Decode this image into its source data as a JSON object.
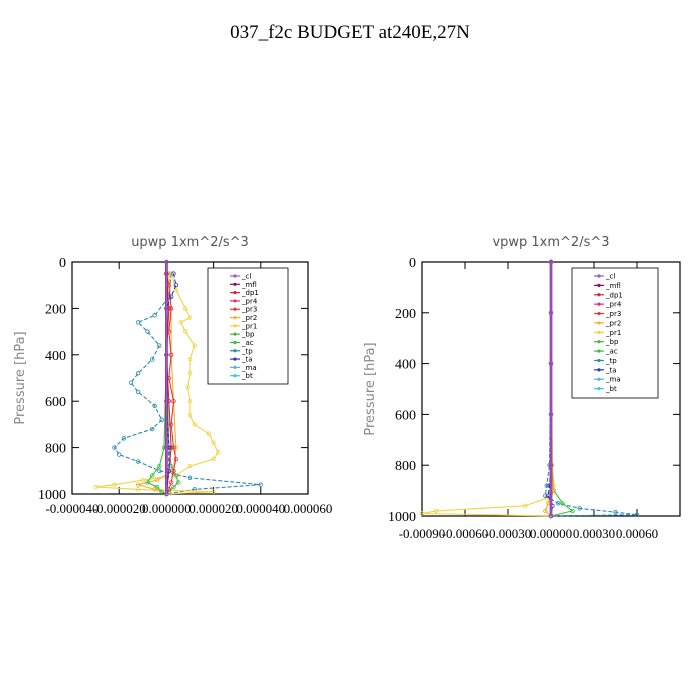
{
  "page": {
    "title": "037_f2c  BUDGET at240E,27N"
  },
  "colors": {
    "cl": "#9b59d0",
    "mfl": "#8b0a5a",
    "dp1": "#d0283c",
    "pr4": "#e0306a",
    "pr3": "#e23a3a",
    "pr2": "#f0b030",
    "pr1": "#f2d340",
    "bp": "#50b048",
    "ac": "#38c038",
    "tp": "#2a8ab0",
    "ta": "#2838c8",
    "ma": "#60b0d0",
    "bt": "#30d0d8"
  },
  "chart_data": [
    {
      "type": "line",
      "title": "upwp   1xm^2/s^3",
      "ylabel": "Pressure [hPa]",
      "xlabel": "",
      "xlim": [
        -4e-05,
        6e-05
      ],
      "ylim": [
        1000,
        0
      ],
      "x_tick_labels": [
        "-0.000040",
        "-0.000020",
        "0.000000",
        "0.000020",
        "0.000040",
        "0.000060"
      ],
      "x_tick_values": [
        -4e-05,
        -2e-05,
        0.0,
        2e-05,
        4e-05,
        6e-05
      ],
      "y_tick_labels": [
        "0",
        "200",
        "400",
        "600",
        "800",
        "1000"
      ],
      "y_tick_values": [
        0,
        200,
        400,
        600,
        800,
        1000
      ],
      "legend": [
        "_cl",
        "_mfl",
        "_dp1",
        "_pr4",
        "_pr3",
        "_pr2",
        "_pr1",
        "_bp",
        "_ac",
        "_tp",
        "_ta",
        "_ma",
        "_bt"
      ],
      "legend_position": "top-right",
      "series": [
        {
          "name": "_tp",
          "color_key": "tp",
          "p": [
            50,
            150,
            230,
            260,
            300,
            360,
            420,
            480,
            520,
            560,
            620,
            680,
            720,
            760,
            800,
            830,
            860,
            900,
            930,
            960,
            980,
            1000
          ],
          "x": [
            2e-06,
            1e-06,
            -5e-06,
            -1.2e-05,
            -8e-06,
            -3e-06,
            -6e-06,
            -1.2e-05,
            -1.5e-05,
            -1.2e-05,
            -5e-06,
            -2e-06,
            -6e-06,
            -1.8e-05,
            -2.2e-05,
            -2e-05,
            -1.2e-05,
            -3e-06,
            1e-05,
            4e-05,
            1.2e-05,
            0.0
          ]
        },
        {
          "name": "_pr1",
          "color_key": "pr1",
          "p": [
            50,
            120,
            200,
            240,
            260,
            300,
            360,
            420,
            480,
            540,
            600,
            660,
            700,
            740,
            780,
            820,
            850,
            880,
            920,
            940,
            960,
            970,
            980,
            990,
            1000
          ],
          "x": [
            2e-06,
            4e-06,
            8e-06,
            1e-05,
            6e-06,
            8e-06,
            1.2e-05,
            1e-05,
            1e-05,
            9e-06,
            1e-05,
            1e-05,
            1.2e-05,
            1.8e-05,
            2e-05,
            2.2e-05,
            2e-05,
            1e-05,
            4e-06,
            -1e-05,
            -2.2e-05,
            -3e-05,
            -1.2e-05,
            2e-05,
            0.0
          ]
        },
        {
          "name": "_pr2",
          "color_key": "pr2",
          "p": [
            50,
            200,
            400,
            600,
            800,
            900,
            940,
            960,
            980,
            1000
          ],
          "x": [
            1e-06,
            2e-06,
            2e-06,
            3e-06,
            4e-06,
            3e-06,
            -4e-06,
            -1.2e-05,
            -5e-06,
            0.0
          ]
        },
        {
          "name": "_ac",
          "color_key": "ac",
          "p": [
            50,
            400,
            800,
            880,
            920,
            950,
            970,
            990,
            1000
          ],
          "x": [
            0.0,
            0.0,
            -1e-06,
            -3e-06,
            -6e-06,
            -8e-06,
            -4e-06,
            -2e-06,
            0.0
          ]
        },
        {
          "name": "_bp",
          "color_key": "bp",
          "p": [
            50,
            400,
            800,
            880,
            920,
            950,
            970,
            990,
            1000
          ],
          "x": [
            0.0,
            0.0,
            1e-06,
            2e-06,
            4e-06,
            5e-06,
            3e-06,
            1e-06,
            0.0
          ]
        },
        {
          "name": "_pr3",
          "color_key": "pr3",
          "p": [
            50,
            100,
            200,
            300,
            400,
            500,
            600,
            700,
            800,
            850,
            900,
            950,
            980,
            1000
          ],
          "x": [
            0.0,
            1e-06,
            2e-06,
            1e-06,
            2e-06,
            1e-06,
            3e-06,
            2e-06,
            3e-06,
            4e-06,
            3e-06,
            2e-06,
            1e-06,
            0.0
          ]
        },
        {
          "name": "_dp1",
          "color_key": "dp1",
          "p": [
            50,
            200,
            400,
            600,
            800,
            900,
            1000
          ],
          "x": [
            0.0,
            1e-06,
            0.0,
            1e-06,
            2e-06,
            1e-06,
            0.0
          ]
        },
        {
          "name": "_ta",
          "color_key": "ta",
          "p": [
            50,
            100,
            150,
            200,
            400,
            600,
            800,
            900,
            1000
          ],
          "x": [
            3e-06,
            4e-06,
            2e-06,
            0.0,
            0.0,
            0.0,
            1e-06,
            1e-06,
            0.0
          ]
        },
        {
          "name": "_mfl",
          "color_key": "mfl",
          "p": [
            0,
            200,
            400,
            600,
            800,
            1000
          ],
          "x": [
            0.0,
            0.0,
            0.0,
            0.0,
            0.0,
            0.0
          ]
        },
        {
          "name": "_cl",
          "color_key": "cl",
          "p": [
            0,
            200,
            400,
            600,
            800,
            1000
          ],
          "x": [
            0.0,
            0.0,
            0.0,
            0.0,
            0.0,
            0.0
          ]
        }
      ]
    },
    {
      "type": "line",
      "title": "vpwp   1xm^2/s^3",
      "ylabel": "Pressure [hPa]",
      "xlabel": "",
      "xlim": [
        -0.0009,
        0.0009
      ],
      "ylim": [
        1000,
        0
      ],
      "x_tick_labels": [
        "-0.00090",
        "-0.00060",
        "-0.00030",
        "0.00000",
        "0.00030",
        "0.00060"
      ],
      "x_tick_values": [
        -0.0009,
        -0.0006,
        -0.0003,
        0.0,
        0.0003,
        0.0006
      ],
      "y_tick_labels": [
        "0",
        "200",
        "400",
        "600",
        "800",
        "1000"
      ],
      "y_tick_values": [
        0,
        200,
        400,
        600,
        800,
        1000
      ],
      "legend": [
        "_cl",
        "_mfl",
        "_dp1",
        "_pr4",
        "_pr3",
        "_pr2",
        "_pr1",
        "_bp",
        "_ac",
        "_tp",
        "_ta",
        "_ma",
        "_bt"
      ],
      "legend_position": "top-right",
      "series": [
        {
          "name": "_pr1",
          "color_key": "pr1",
          "p": [
            0,
            400,
            800,
            880,
            930,
            960,
            980,
            990,
            1000
          ],
          "x": [
            0.0,
            0.0,
            1e-05,
            2e-05,
            -3e-05,
            -0.00018,
            -0.0008,
            -0.0009,
            0.0
          ]
        },
        {
          "name": "_tp",
          "color_key": "tp",
          "p": [
            0,
            400,
            800,
            880,
            920,
            950,
            970,
            985,
            995,
            1000
          ],
          "x": [
            0.0,
            0.0,
            -1e-05,
            -3e-05,
            -4e-05,
            5e-05,
            0.0002,
            0.00045,
            0.0006,
            0.0
          ]
        },
        {
          "name": "_ac",
          "color_key": "ac",
          "p": [
            0,
            800,
            900,
            950,
            980,
            1000
          ],
          "x": [
            0.0,
            0.0,
            2e-05,
            8e-05,
            0.00015,
            0.0
          ]
        },
        {
          "name": "_pr2",
          "color_key": "pr2",
          "p": [
            0,
            800,
            900,
            950,
            980,
            1000
          ],
          "x": [
            0.0,
            0.0,
            2e-05,
            -2e-05,
            -4e-05,
            0.0
          ]
        },
        {
          "name": "_ta",
          "color_key": "ta",
          "p": [
            0,
            800,
            880,
            920,
            960,
            1000
          ],
          "x": [
            0.0,
            0.0,
            -1e-05,
            -2e-05,
            1e-05,
            0.0
          ]
        },
        {
          "name": "_mfl",
          "color_key": "mfl",
          "p": [
            0,
            200,
            400,
            600,
            800,
            1000
          ],
          "x": [
            0.0,
            0.0,
            0.0,
            0.0,
            0.0,
            0.0
          ]
        },
        {
          "name": "_cl",
          "color_key": "cl",
          "p": [
            0,
            200,
            400,
            600,
            800,
            1000
          ],
          "x": [
            0.0,
            0.0,
            0.0,
            0.0,
            0.0,
            0.0
          ]
        }
      ]
    }
  ]
}
